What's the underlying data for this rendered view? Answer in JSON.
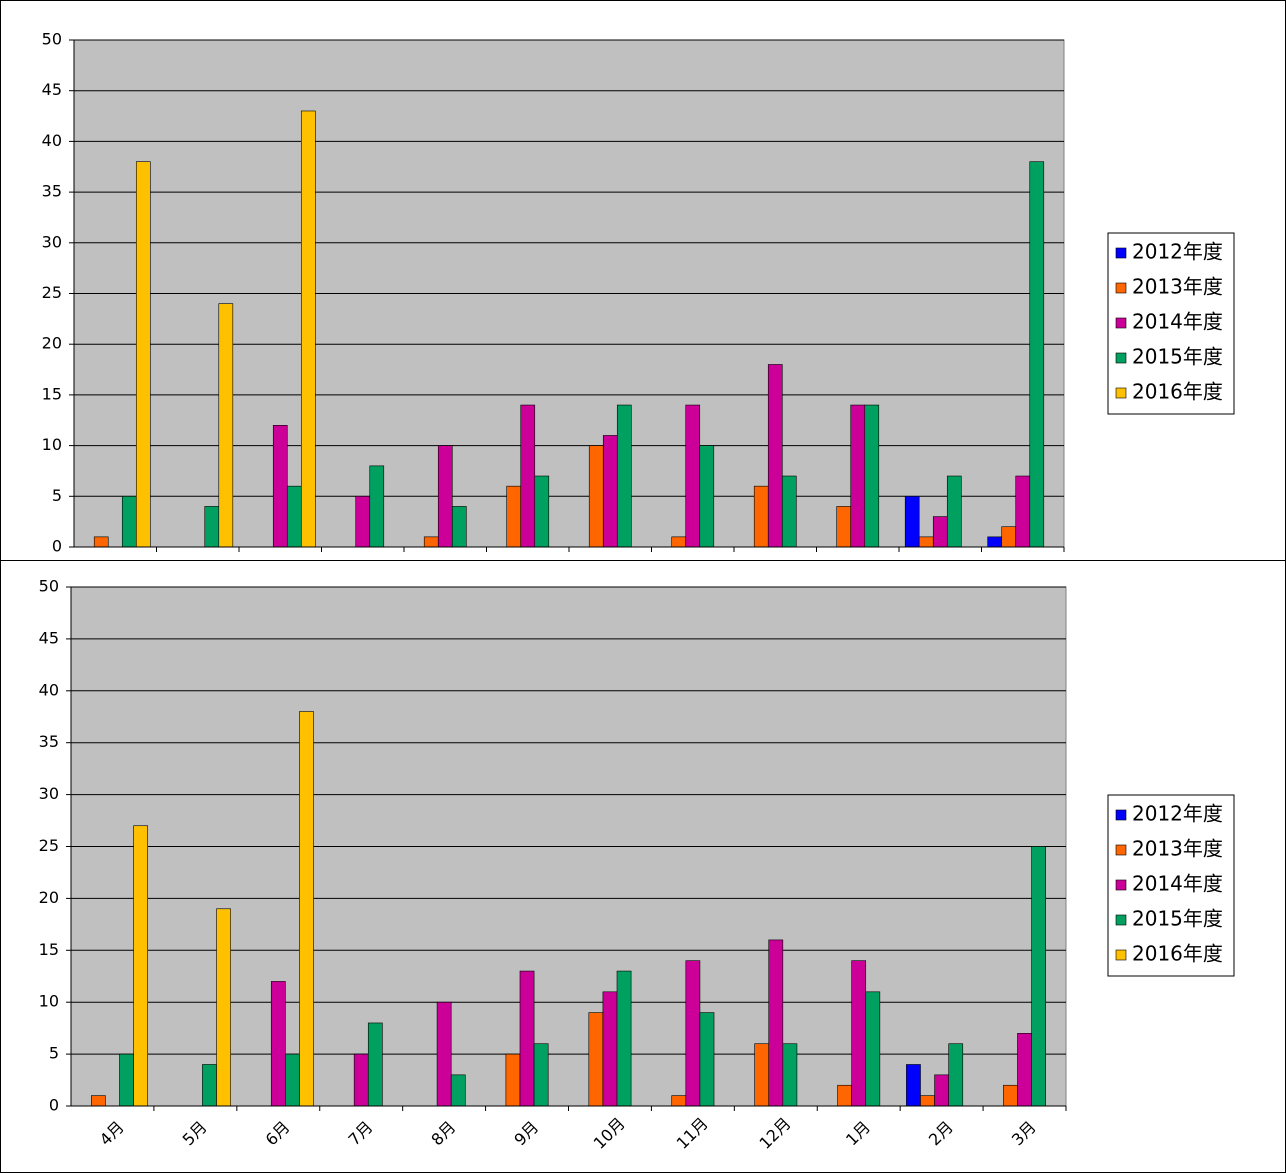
{
  "chart_data": [
    {
      "type": "bar",
      "categories": [
        null,
        null,
        null,
        null,
        null,
        null,
        null,
        null,
        null,
        null,
        null,
        null
      ],
      "series": [
        {
          "name": "2012年度",
          "color": "#0000ff",
          "values": [
            null,
            null,
            null,
            null,
            null,
            null,
            null,
            null,
            null,
            null,
            5,
            1
          ]
        },
        {
          "name": "2013年度",
          "color": "#ff6600",
          "values": [
            1,
            null,
            null,
            null,
            1,
            6,
            10,
            1,
            6,
            4,
            1,
            2
          ]
        },
        {
          "name": "2014年度",
          "color": "#cc0099",
          "values": [
            null,
            null,
            12,
            5,
            10,
            14,
            11,
            14,
            18,
            14,
            3,
            7
          ]
        },
        {
          "name": "2015年度",
          "color": "#00a060",
          "values": [
            5,
            4,
            6,
            8,
            4,
            7,
            14,
            10,
            7,
            14,
            7,
            38
          ]
        },
        {
          "name": "2016年度",
          "color": "#ffc000",
          "values": [
            38,
            24,
            43,
            null,
            null,
            null,
            null,
            null,
            null,
            null,
            null,
            null
          ]
        }
      ],
      "ylim": [
        0,
        50
      ],
      "yticks": [
        0,
        5,
        10,
        15,
        20,
        25,
        30,
        35,
        40,
        45,
        50
      ],
      "grid": true,
      "legend": "right"
    },
    {
      "type": "bar",
      "categories": [
        "4月",
        "5月",
        "6月",
        "7月",
        "8月",
        "9月",
        "10月",
        "11月",
        "12月",
        "1月",
        "2月",
        "3月"
      ],
      "series": [
        {
          "name": "2012年度",
          "color": "#0000ff",
          "values": [
            null,
            null,
            null,
            null,
            null,
            null,
            null,
            null,
            null,
            null,
            4,
            null
          ]
        },
        {
          "name": "2013年度",
          "color": "#ff6600",
          "values": [
            1,
            null,
            null,
            null,
            null,
            5,
            9,
            1,
            6,
            2,
            1,
            2
          ]
        },
        {
          "name": "2014年度",
          "color": "#cc0099",
          "values": [
            null,
            null,
            12,
            5,
            10,
            13,
            11,
            14,
            16,
            14,
            3,
            7
          ]
        },
        {
          "name": "2015年度",
          "color": "#00a060",
          "values": [
            5,
            4,
            5,
            8,
            3,
            6,
            13,
            9,
            6,
            11,
            6,
            25
          ]
        },
        {
          "name": "2016年度",
          "color": "#ffc000",
          "values": [
            27,
            19,
            38,
            null,
            null,
            null,
            null,
            null,
            null,
            null,
            null,
            null
          ]
        }
      ],
      "ylim": [
        0,
        50
      ],
      "yticks": [
        0,
        5,
        10,
        15,
        20,
        25,
        30,
        35,
        40,
        45,
        50
      ],
      "grid": true,
      "legend": "right"
    }
  ]
}
